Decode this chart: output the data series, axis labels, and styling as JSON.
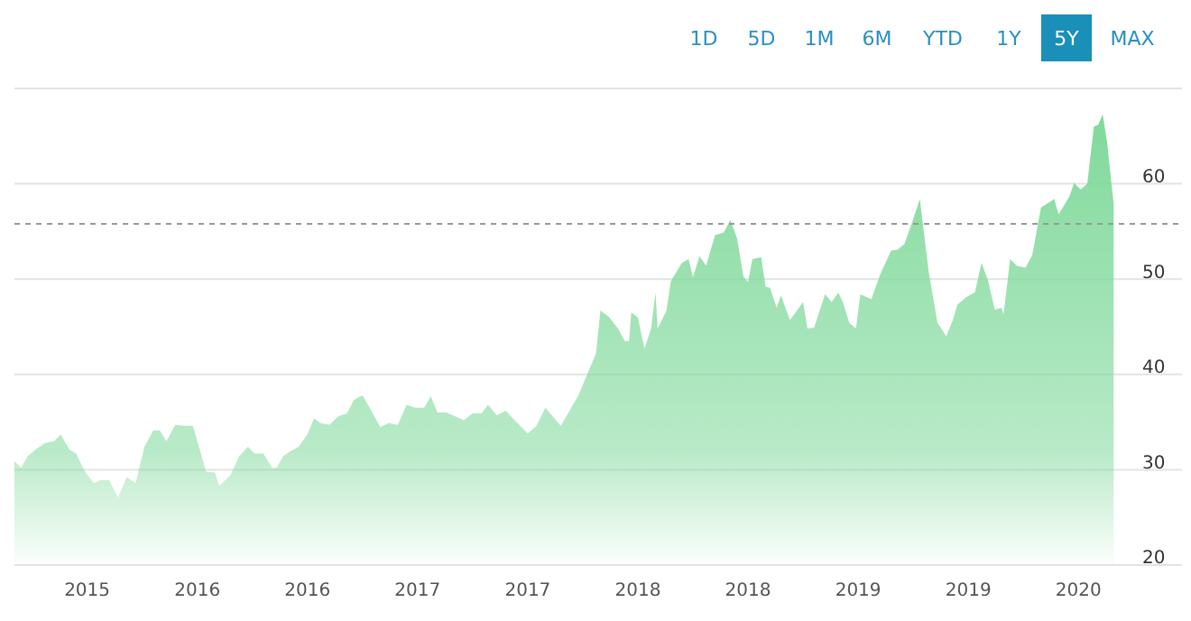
{
  "chart_data": {
    "type": "area",
    "annotations": [
      "1D",
      "5D",
      "1M",
      "6M",
      "YTD",
      "1Y",
      "5Y",
      "MAX"
    ],
    "xlim": [
      2015.17,
      2020.47
    ],
    "ylim": [
      20,
      70
    ],
    "xticks": [
      {
        "value": 2015.5,
        "label": "2015"
      },
      {
        "value": 2016,
        "label": "2016"
      },
      {
        "value": 2016.5,
        "label": "2016"
      },
      {
        "value": 2017,
        "label": "2017"
      },
      {
        "value": 2017.5,
        "label": "2017"
      },
      {
        "value": 2018,
        "label": "2018"
      },
      {
        "value": 2018.5,
        "label": "2018"
      },
      {
        "value": 2019,
        "label": "2019"
      },
      {
        "value": 2019.5,
        "label": "2019"
      },
      {
        "value": 2020,
        "label": "2020"
      }
    ],
    "yticks": [
      20,
      30,
      40,
      50,
      60,
      {
        "value": 70,
        "label": null
      }
    ],
    "grid": "y",
    "ref_lines": [
      {
        "axis": "y",
        "value": 55.8,
        "color": "#999999",
        "line_style": "dashed"
      }
    ],
    "x": [
      2015.17,
      2015.2,
      2015.23,
      2015.27,
      2015.31,
      2015.35,
      2015.38,
      2015.42,
      2015.45,
      2015.49,
      2015.53,
      2015.56,
      2015.6,
      2015.64,
      2015.68,
      2015.72,
      2015.76,
      2015.8,
      2015.83,
      2015.86,
      2015.9,
      2015.94,
      2015.98,
      2016.04,
      2016.08,
      2016.1,
      2016.15,
      2016.19,
      2016.23,
      2016.26,
      2016.3,
      2016.34,
      2016.36,
      2016.39,
      2016.42,
      2016.46,
      2016.5,
      2016.53,
      2016.56,
      2016.6,
      2016.64,
      2016.68,
      2016.71,
      2016.75,
      2016.79,
      2016.83,
      2016.87,
      2016.91,
      2016.95,
      2016.99,
      2017.03,
      2017.06,
      2017.09,
      2017.13,
      2017.17,
      2017.21,
      2017.25,
      2017.29,
      2017.32,
      2017.36,
      2017.4,
      2017.44,
      2017.5,
      2017.54,
      2017.58,
      2017.61,
      2017.65,
      2017.69,
      2017.73,
      2017.77,
      2017.81,
      2017.83,
      2017.87,
      2017.91,
      2017.94,
      2017.96,
      2017.97,
      2018,
      2018.03,
      2018.06,
      2018.08,
      2018.09,
      2018.13,
      2018.15,
      2018.2,
      2018.23,
      2018.25,
      2018.28,
      2018.31,
      2018.35,
      2018.39,
      2018.42,
      2018.45,
      2018.48,
      2018.5,
      2018.52,
      2018.56,
      2018.58,
      2018.6,
      2018.63,
      2018.65,
      2018.69,
      2018.71,
      2018.75,
      2018.77,
      2018.8,
      2018.85,
      2018.88,
      2018.91,
      2018.93,
      2018.96,
      2018.99,
      2019.01,
      2019.06,
      2019.1,
      2019.15,
      2019.18,
      2019.21,
      2019.24,
      2019.28,
      2019.32,
      2019.36,
      2019.4,
      2019.43,
      2019.45,
      2019.49,
      2019.53,
      2019.56,
      2019.59,
      2019.62,
      2019.65,
      2019.66,
      2019.69,
      2019.72,
      2019.76,
      2019.79,
      2019.83,
      2019.89,
      2019.91,
      2019.96,
      2019.98,
      2020.01,
      2020.04,
      2020.07,
      2020.09,
      2020.11,
      2020.13,
      2020.15,
      2020.16
    ],
    "series": [
      {
        "color": "#80d99b",
        "values": [
          30.9,
          30.2,
          31.4,
          32.2,
          32.8,
          33.0,
          33.7,
          32.1,
          31.7,
          29.8,
          28.6,
          28.9,
          28.9,
          27.1,
          29.2,
          28.6,
          32.4,
          34.1,
          34.1,
          33.0,
          34.7,
          34.6,
          34.6,
          29.8,
          29.7,
          28.3,
          29.4,
          31.4,
          32.4,
          31.7,
          31.7,
          30.2,
          30.2,
          31.4,
          31.9,
          32.4,
          33.7,
          35.4,
          34.9,
          34.7,
          35.6,
          35.9,
          37.3,
          37.8,
          36.2,
          34.5,
          34.9,
          34.7,
          36.8,
          36.5,
          36.5,
          37.7,
          36.0,
          36.0,
          35.6,
          35.2,
          35.9,
          35.9,
          36.8,
          35.7,
          36.2,
          35.2,
          33.8,
          34.6,
          36.5,
          35.7,
          34.6,
          36.2,
          37.8,
          40.0,
          42.2,
          46.7,
          46.0,
          44.8,
          43.5,
          43.5,
          46.5,
          46.0,
          42.7,
          44.8,
          48.6,
          44.8,
          46.7,
          49.8,
          51.7,
          52.1,
          50.2,
          52.4,
          51.4,
          54.6,
          54.9,
          56.2,
          54.3,
          50.2,
          49.7,
          52.1,
          52.3,
          49.2,
          49.1,
          47.0,
          48.3,
          45.7,
          46.3,
          47.6,
          44.8,
          44.9,
          48.4,
          47.6,
          48.6,
          47.6,
          45.4,
          44.8,
          48.4,
          47.9,
          50.5,
          53.0,
          53.1,
          53.7,
          55.6,
          58.4,
          50.8,
          45.4,
          44.0,
          45.7,
          47.3,
          48.1,
          48.6,
          51.7,
          49.8,
          46.8,
          47.0,
          46.3,
          52.1,
          51.4,
          51.2,
          52.5,
          57.5,
          58.4,
          56.8,
          58.7,
          60.1,
          59.4,
          60.0,
          66.0,
          66.2,
          67.3,
          64.4,
          60.0,
          58.0
        ]
      }
    ]
  }
}
